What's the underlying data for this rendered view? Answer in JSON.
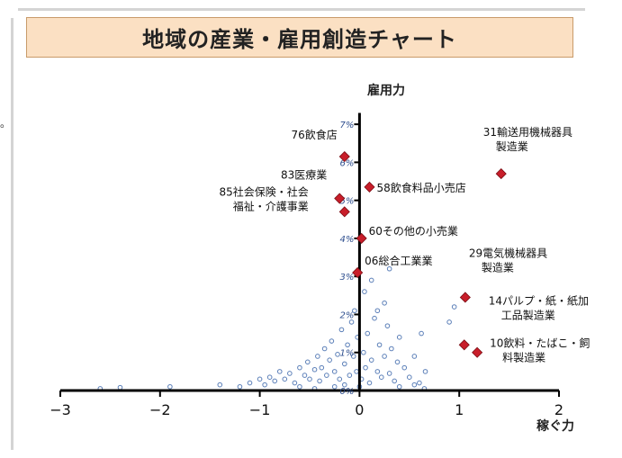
{
  "frame": {
    "edge_mark": "。"
  },
  "chart_data": {
    "type": "scatter",
    "title": "地域の産業・雇用創造チャート",
    "xlabel": "稼ぐ力",
    "ylabel": "雇用力",
    "xlim": [
      -3,
      2
    ],
    "ylim": [
      0,
      7.5
    ],
    "x_ticks": [
      {
        "value": -3,
        "label": "−3"
      },
      {
        "value": -2,
        "label": "−2"
      },
      {
        "value": -1,
        "label": "−1"
      },
      {
        "value": 0,
        "label": "0"
      },
      {
        "value": 1,
        "label": "1"
      },
      {
        "value": 2,
        "label": "2"
      }
    ],
    "y_ticks": [
      {
        "value": 0,
        "label": "0%"
      },
      {
        "value": 1,
        "label": "1%"
      },
      {
        "value": 2,
        "label": "2%"
      },
      {
        "value": 3,
        "label": "3%"
      },
      {
        "value": 4,
        "label": "4%"
      },
      {
        "value": 5,
        "label": "5%"
      },
      {
        "value": 6,
        "label": "6%"
      },
      {
        "value": 7,
        "label": "7%"
      }
    ],
    "highlighted": [
      {
        "label": [
          "76飲食店"
        ],
        "x": -0.15,
        "y": 6.15,
        "anchor": "end",
        "dx": -8,
        "dy": -20
      },
      {
        "label": [
          "83医療業"
        ],
        "x": -0.2,
        "y": 5.05,
        "anchor": "end",
        "dx": -14,
        "dy": -22
      },
      {
        "label": [
          "85社会保険・社会",
          "福祉・介護事業"
        ],
        "x": -0.15,
        "y": 4.7,
        "anchor": "end",
        "dx": -40,
        "dy": -18
      },
      {
        "label": [
          "58飲食料品小売店"
        ],
        "x": 0.1,
        "y": 5.35,
        "anchor": "start",
        "dx": 8,
        "dy": 5
      },
      {
        "label": [
          "60その他の小売業"
        ],
        "x": 0.02,
        "y": 4.0,
        "anchor": "start",
        "dx": 8,
        "dy": -4
      },
      {
        "label": [
          "06総合工業業"
        ],
        "x": -0.02,
        "y": 3.1,
        "anchor": "start",
        "dx": 8,
        "dy": -9
      },
      {
        "label": [
          "31輸送用機械器具",
          "製造業"
        ],
        "x": 1.42,
        "y": 5.7,
        "anchor": "start",
        "dx": -20,
        "dy": -42
      },
      {
        "label": [
          "29電気機械器具",
          "製造業"
        ],
        "x": 1.06,
        "y": 2.45,
        "anchor": "start",
        "dx": 4,
        "dy": -45
      },
      {
        "label": [
          "14パルプ・紙・紙加",
          "工品製造業"
        ],
        "x": 1.05,
        "y": 1.2,
        "anchor": "start",
        "dx": 27,
        "dy": -45
      },
      {
        "label": [
          "10飲料・たばこ・飼",
          "料製造業"
        ],
        "x": 1.18,
        "y": 1.0,
        "anchor": "start",
        "dx": 14,
        "dy": -6
      }
    ],
    "other_points": [
      [
        -2.6,
        0.05
      ],
      [
        -2.4,
        0.08
      ],
      [
        -1.9,
        0.1
      ],
      [
        -1.4,
        0.15
      ],
      [
        -1.1,
        0.2
      ],
      [
        -1.0,
        0.3
      ],
      [
        -0.95,
        0.15
      ],
      [
        -0.9,
        0.35
      ],
      [
        -0.85,
        0.25
      ],
      [
        -0.8,
        0.5
      ],
      [
        -0.75,
        0.3
      ],
      [
        -0.7,
        0.45
      ],
      [
        -0.65,
        0.2
      ],
      [
        -0.6,
        0.6
      ],
      [
        -0.55,
        0.4
      ],
      [
        -0.52,
        0.75
      ],
      [
        -0.5,
        0.3
      ],
      [
        -0.45,
        0.55
      ],
      [
        -0.42,
        0.9
      ],
      [
        -0.4,
        0.25
      ],
      [
        -0.38,
        0.6
      ],
      [
        -0.35,
        1.1
      ],
      [
        -0.33,
        0.4
      ],
      [
        -0.3,
        0.8
      ],
      [
        -0.28,
        1.3
      ],
      [
        -0.25,
        0.5
      ],
      [
        -0.22,
        0.95
      ],
      [
        -0.2,
        0.3
      ],
      [
        -0.18,
        1.6
      ],
      [
        -0.15,
        0.7
      ],
      [
        -0.12,
        1.2
      ],
      [
        -0.1,
        0.4
      ],
      [
        -0.08,
        1.8
      ],
      [
        -0.06,
        0.9
      ],
      [
        -0.05,
        2.1
      ],
      [
        -0.03,
        0.5
      ],
      [
        -0.02,
        1.4
      ],
      [
        0.02,
        0.3
      ],
      [
        0.04,
        1.0
      ],
      [
        0.05,
        2.6
      ],
      [
        0.06,
        0.6
      ],
      [
        0.08,
        1.5
      ],
      [
        0.1,
        0.2
      ],
      [
        0.12,
        0.8
      ],
      [
        0.15,
        1.9
      ],
      [
        0.18,
        0.5
      ],
      [
        0.2,
        1.2
      ],
      [
        0.22,
        0.35
      ],
      [
        0.25,
        0.9
      ],
      [
        0.28,
        1.7
      ],
      [
        0.3,
        0.45
      ],
      [
        0.32,
        1.1
      ],
      [
        0.35,
        0.25
      ],
      [
        0.38,
        0.75
      ],
      [
        0.4,
        1.4
      ],
      [
        0.45,
        0.6
      ],
      [
        0.5,
        0.35
      ],
      [
        0.55,
        0.9
      ],
      [
        0.6,
        0.2
      ],
      [
        0.62,
        1.5
      ],
      [
        0.66,
        0.5
      ],
      [
        0.18,
        2.1
      ],
      [
        0.25,
        2.3
      ],
      [
        0.12,
        2.9
      ],
      [
        0.3,
        3.2
      ],
      [
        0.95,
        2.2
      ],
      [
        0.65,
        0.05
      ],
      [
        0.9,
        1.8
      ],
      [
        -0.6,
        0.1
      ],
      [
        -0.25,
        0.1
      ],
      [
        0.0,
        0.1
      ],
      [
        0.4,
        0.1
      ],
      [
        -1.2,
        0.1
      ],
      [
        -0.45,
        0.05
      ],
      [
        0.55,
        0.15
      ],
      [
        -0.15,
        0.15
      ]
    ]
  }
}
